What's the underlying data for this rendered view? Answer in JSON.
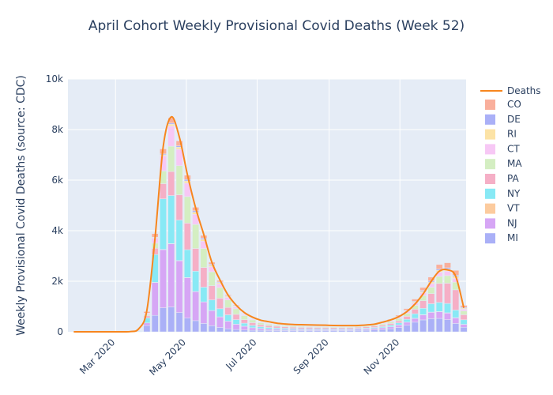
{
  "chart_data": {
    "type": "bar",
    "title": "April Cohort Weekly Provisional Covid Deaths (Week 52)",
    "xlabel": "",
    "ylabel": "Weekly Provisional Covid Deaths (source: CDC)",
    "ylim": [
      0,
      10000
    ],
    "y_ticks": [
      {
        "value": 0,
        "label": "0"
      },
      {
        "value": 2000,
        "label": "2k"
      },
      {
        "value": 4000,
        "label": "4k"
      },
      {
        "value": 6000,
        "label": "6k"
      },
      {
        "value": 8000,
        "label": "8k"
      },
      {
        "value": 10000,
        "label": "10k"
      }
    ],
    "xlim": [
      "2020-01-20",
      "2020-12-28"
    ],
    "x_ticks": [
      {
        "date": "2020-03-01",
        "label": "Mar 2020"
      },
      {
        "date": "2020-05-01",
        "label": "May 2020"
      },
      {
        "date": "2020-07-01",
        "label": "Jul 2020"
      },
      {
        "date": "2020-09-01",
        "label": "Sep 2020"
      },
      {
        "date": "2020-11-01",
        "label": "Nov 2020"
      }
    ],
    "barmode": "stack",
    "grid": true,
    "legend_position": "right",
    "dates": [
      "2020-01-04",
      "2020-01-11",
      "2020-01-18",
      "2020-01-25",
      "2020-02-01",
      "2020-02-08",
      "2020-02-15",
      "2020-02-22",
      "2020-02-29",
      "2020-03-07",
      "2020-03-14",
      "2020-03-21",
      "2020-03-28",
      "2020-04-04",
      "2020-04-11",
      "2020-04-18",
      "2020-04-25",
      "2020-05-02",
      "2020-05-09",
      "2020-05-16",
      "2020-05-23",
      "2020-05-30",
      "2020-06-06",
      "2020-06-13",
      "2020-06-20",
      "2020-06-27",
      "2020-07-04",
      "2020-07-11",
      "2020-07-18",
      "2020-07-25",
      "2020-08-01",
      "2020-08-08",
      "2020-08-15",
      "2020-08-22",
      "2020-08-29",
      "2020-09-05",
      "2020-09-12",
      "2020-09-19",
      "2020-09-26",
      "2020-10-03",
      "2020-10-10",
      "2020-10-17",
      "2020-10-24",
      "2020-10-31",
      "2020-11-07",
      "2020-11-14",
      "2020-11-21",
      "2020-11-28",
      "2020-12-05",
      "2020-12-12",
      "2020-12-19",
      "2020-12-26"
    ],
    "series": [
      {
        "name": "MI",
        "color": "#AAB0F7",
        "values": [
          0,
          0,
          0,
          0,
          0,
          0,
          0,
          0,
          0,
          0,
          0,
          15,
          250,
          650,
          950,
          980,
          760,
          540,
          440,
          330,
          240,
          170,
          120,
          90,
          70,
          60,
          60,
          50,
          50,
          50,
          50,
          50,
          50,
          50,
          50,
          50,
          50,
          50,
          55,
          60,
          70,
          90,
          120,
          170,
          260,
          380,
          470,
          520,
          530,
          480,
          330,
          180
        ]
      },
      {
        "name": "NJ",
        "color": "#D6A6F5",
        "values": [
          0,
          0,
          0,
          0,
          0,
          0,
          0,
          0,
          0,
          0,
          0,
          5,
          100,
          1300,
          2300,
          2500,
          2050,
          1600,
          1150,
          850,
          600,
          420,
          300,
          210,
          150,
          100,
          70,
          60,
          50,
          40,
          40,
          35,
          35,
          35,
          35,
          35,
          35,
          40,
          45,
          50,
          60,
          70,
          80,
          100,
          120,
          150,
          200,
          250,
          260,
          260,
          220,
          110
        ]
      },
      {
        "name": "VT",
        "color": "#FCCB9E",
        "values": [
          0,
          0,
          0,
          0,
          0,
          0,
          0,
          0,
          0,
          0,
          0,
          0,
          0,
          5,
          10,
          10,
          10,
          8,
          6,
          5,
          3,
          2,
          2,
          1,
          1,
          1,
          1,
          1,
          1,
          1,
          1,
          1,
          1,
          1,
          1,
          1,
          1,
          1,
          1,
          1,
          1,
          1,
          2,
          2,
          3,
          5,
          8,
          10,
          12,
          12,
          10,
          5
        ]
      },
      {
        "name": "NY",
        "color": "#88E9F5",
        "values": [
          0,
          0,
          0,
          0,
          0,
          0,
          0,
          0,
          0,
          0,
          0,
          20,
          200,
          1100,
          2000,
          1900,
          1600,
          1100,
          800,
          580,
          420,
          320,
          250,
          180,
          120,
          90,
          70,
          60,
          50,
          50,
          40,
          35,
          35,
          35,
          35,
          30,
          30,
          30,
          35,
          35,
          40,
          45,
          60,
          80,
          110,
          180,
          250,
          330,
          360,
          370,
          300,
          180
        ]
      },
      {
        "name": "PA",
        "color": "#F5AFC6",
        "values": [
          0,
          0,
          0,
          0,
          0,
          0,
          0,
          0,
          0,
          0,
          0,
          5,
          80,
          250,
          600,
          950,
          1000,
          1050,
          900,
          780,
          560,
          420,
          290,
          210,
          140,
          110,
          80,
          70,
          70,
          60,
          55,
          55,
          55,
          50,
          50,
          50,
          45,
          45,
          45,
          50,
          55,
          60,
          70,
          80,
          120,
          180,
          300,
          400,
          750,
          800,
          800,
          200
        ]
      },
      {
        "name": "MA",
        "color": "#D4EEC2",
        "values": [
          0,
          0,
          0,
          0,
          0,
          0,
          0,
          0,
          0,
          0,
          0,
          5,
          50,
          200,
          500,
          1000,
          1150,
          1050,
          950,
          750,
          550,
          420,
          300,
          220,
          160,
          110,
          80,
          60,
          50,
          45,
          40,
          35,
          30,
          30,
          30,
          30,
          30,
          30,
          30,
          35,
          40,
          50,
          70,
          90,
          120,
          150,
          200,
          250,
          280,
          300,
          300,
          150
        ]
      },
      {
        "name": "CT",
        "color": "#F7C8F5",
        "values": [
          0,
          0,
          0,
          0,
          0,
          0,
          0,
          0,
          0,
          0,
          0,
          5,
          50,
          200,
          600,
          800,
          650,
          530,
          400,
          290,
          200,
          140,
          100,
          70,
          40,
          30,
          25,
          20,
          20,
          15,
          15,
          15,
          15,
          15,
          15,
          15,
          15,
          15,
          15,
          20,
          25,
          30,
          40,
          50,
          70,
          100,
          120,
          150,
          170,
          180,
          160,
          70
        ]
      },
      {
        "name": "RI",
        "color": "#FCE3A6",
        "values": [
          0,
          0,
          0,
          0,
          0,
          0,
          0,
          0,
          0,
          0,
          0,
          0,
          5,
          20,
          40,
          70,
          85,
          90,
          85,
          70,
          60,
          50,
          35,
          25,
          15,
          10,
          10,
          8,
          8,
          7,
          7,
          7,
          7,
          7,
          7,
          7,
          7,
          7,
          7,
          8,
          10,
          12,
          15,
          20,
          25,
          35,
          50,
          60,
          70,
          75,
          70,
          40
        ]
      },
      {
        "name": "DE",
        "color": "#AAB0F7",
        "values": [
          0,
          0,
          0,
          0,
          0,
          0,
          0,
          0,
          0,
          0,
          0,
          0,
          5,
          20,
          35,
          45,
          50,
          55,
          55,
          50,
          40,
          30,
          25,
          20,
          15,
          12,
          10,
          8,
          7,
          7,
          6,
          6,
          6,
          6,
          6,
          6,
          6,
          6,
          6,
          7,
          8,
          10,
          12,
          15,
          20,
          25,
          35,
          45,
          50,
          55,
          50,
          30
        ]
      },
      {
        "name": "CO",
        "color": "#F9AF9C",
        "values": [
          0,
          0,
          0,
          0,
          0,
          0,
          0,
          0,
          0,
          0,
          0,
          5,
          60,
          140,
          200,
          210,
          200,
          170,
          140,
          110,
          80,
          60,
          40,
          30,
          20,
          15,
          12,
          10,
          10,
          8,
          8,
          8,
          8,
          8,
          8,
          8,
          8,
          8,
          8,
          10,
          12,
          20,
          30,
          50,
          70,
          90,
          120,
          150,
          180,
          200,
          190,
          80
        ]
      }
    ],
    "line": {
      "name": "Deaths",
      "color": "#F7861E",
      "values": [
        0,
        0,
        0,
        0,
        0,
        0,
        0,
        0,
        0,
        0,
        10,
        120,
        850,
        3700,
        7300,
        8500,
        7700,
        6200,
        4900,
        3850,
        2750,
        2050,
        1450,
        1050,
        760,
        580,
        460,
        400,
        340,
        310,
        290,
        280,
        275,
        265,
        260,
        250,
        245,
        245,
        250,
        270,
        300,
        380,
        470,
        600,
        800,
        1100,
        1500,
        2000,
        2400,
        2450,
        2200,
        950
      ]
    }
  }
}
